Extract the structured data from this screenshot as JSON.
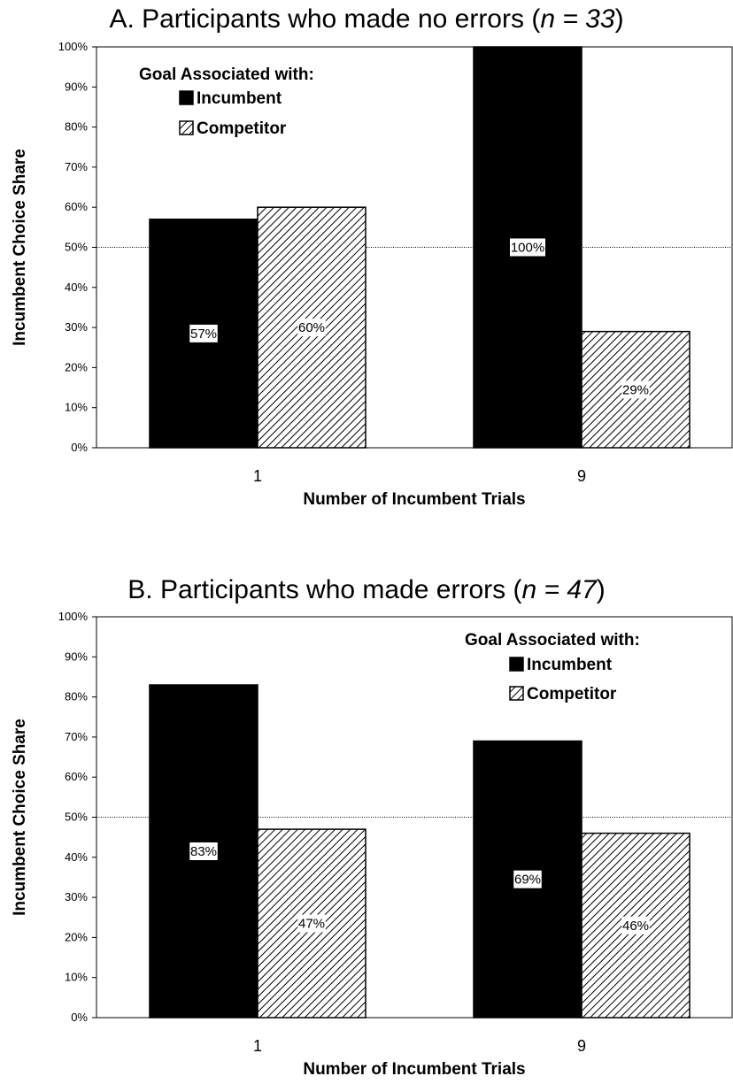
{
  "colors": {
    "incumbent": "#000000",
    "competitor_stripe": "#000000",
    "competitor_bg": "#ffffff",
    "reference_line": "#000000",
    "label_box": "#ffffff"
  },
  "chart_data": [
    {
      "type": "bar",
      "title_prefix": "A. Participants who made no errors (",
      "title_italic": "n = 33",
      "title_suffix": ")",
      "xlabel": "Number of Incumbent Trials",
      "ylabel": "Incumbent Choice Share",
      "categories": [
        "1",
        "9"
      ],
      "ylim": [
        0,
        100
      ],
      "yticks": [
        "0%",
        "10%",
        "20%",
        "30%",
        "40%",
        "50%",
        "60%",
        "70%",
        "80%",
        "90%",
        "100%"
      ],
      "reference_line": 50,
      "legend": {
        "title": "Goal Associated with:",
        "position": "top-left"
      },
      "series": [
        {
          "name": "Incumbent",
          "pattern": "solid",
          "values": [
            57,
            100
          ],
          "labels": [
            "57%",
            "100%"
          ]
        },
        {
          "name": "Competitor",
          "pattern": "hatched",
          "values": [
            60,
            29
          ],
          "labels": [
            "60%",
            "29%"
          ]
        }
      ]
    },
    {
      "type": "bar",
      "title_prefix": "B. Participants who made errors (",
      "title_italic": "n = 47",
      "title_suffix": ")",
      "xlabel": "Number of Incumbent Trials",
      "ylabel": "Incumbent Choice Share",
      "categories": [
        "1",
        "9"
      ],
      "ylim": [
        0,
        100
      ],
      "yticks": [
        "0%",
        "10%",
        "20%",
        "30%",
        "40%",
        "50%",
        "60%",
        "70%",
        "80%",
        "90%",
        "100%"
      ],
      "reference_line": 50,
      "legend": {
        "title": "Goal Associated with:",
        "position": "top-right"
      },
      "series": [
        {
          "name": "Incumbent",
          "pattern": "solid",
          "values": [
            83,
            69
          ],
          "labels": [
            "83%",
            "69%"
          ]
        },
        {
          "name": "Competitor",
          "pattern": "hatched",
          "values": [
            47,
            46
          ],
          "labels": [
            "47%",
            "46%"
          ]
        }
      ]
    }
  ]
}
